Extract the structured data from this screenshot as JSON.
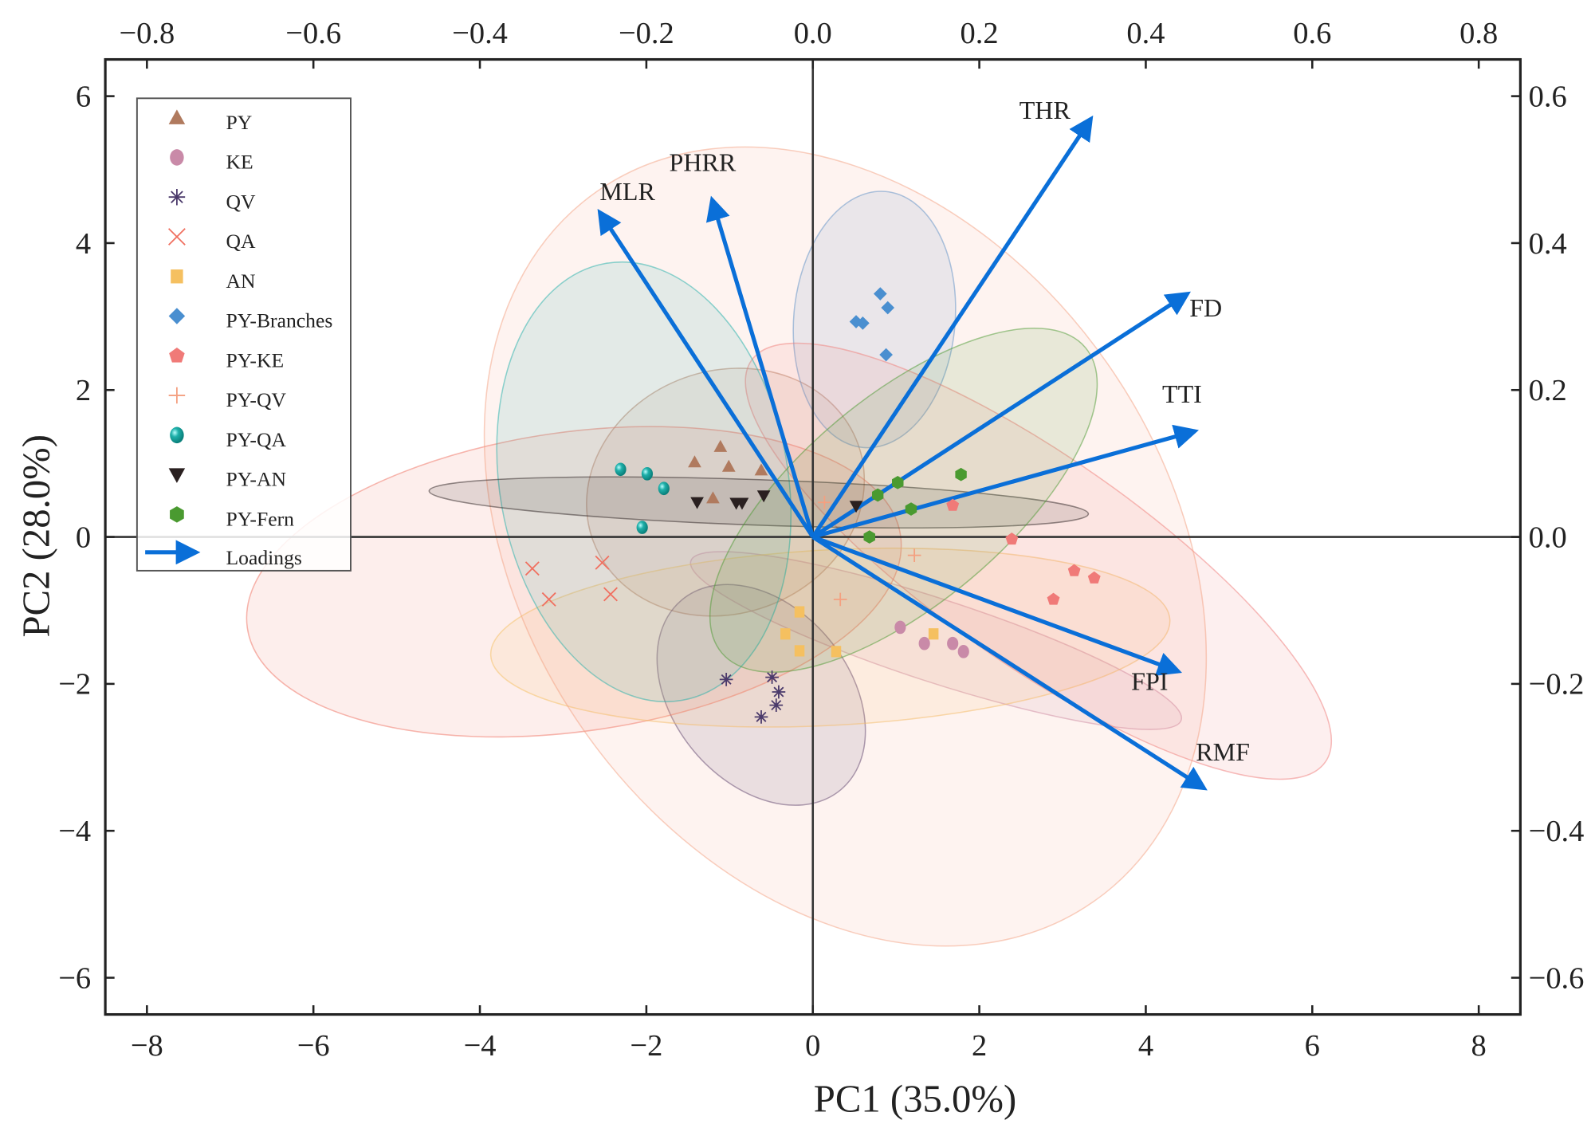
{
  "chart_data": {
    "type": "scatter",
    "subtype": "pca-biplot",
    "xlabel": "PC1 (35.0%)",
    "ylabel": "PC2 (28.0%)",
    "xlim": [
      -8.5,
      8.5
    ],
    "ylim": [
      -6.5,
      6.5
    ],
    "xticks": [
      -8,
      -6,
      -4,
      -2,
      0,
      2,
      4,
      6,
      8
    ],
    "yticks": [
      -6,
      -4,
      -2,
      0,
      2,
      4,
      6
    ],
    "xtick_labels": [
      "−8",
      "−6",
      "−4",
      "−2",
      "0",
      "2",
      "4",
      "6",
      "8"
    ],
    "ytick_labels": [
      "−6",
      "−4",
      "−2",
      "0",
      "2",
      "4",
      "6"
    ],
    "top_ticks": [
      -0.8,
      -0.6,
      -0.4,
      -0.2,
      0.0,
      0.2,
      0.4,
      0.6,
      0.8
    ],
    "top_tick_labels": [
      "−0.8",
      "−0.6",
      "−0.4",
      "−0.2",
      "0.0",
      "0.2",
      "0.4",
      "0.6",
      "0.8"
    ],
    "right_ticks": [
      -0.6,
      -0.4,
      -0.2,
      0.0,
      0.2,
      0.4,
      0.6
    ],
    "right_tick_labels": [
      "−0.6",
      "−0.4",
      "−0.2",
      "0.0",
      "0.2",
      "0.4",
      "0.6"
    ],
    "loading_scale": 10,
    "legend_position": "top-left",
    "legend_loadings_label": "Loadings",
    "loading_color": "#0a6fd8",
    "series": [
      {
        "name": "PY",
        "marker": "triangle-up",
        "color": "#b07a5e",
        "points": [
          [
            -1.42,
            1.02
          ],
          [
            -1.11,
            1.23
          ],
          [
            -1.01,
            0.96
          ],
          [
            -0.62,
            0.91
          ],
          [
            -1.2,
            0.53
          ]
        ],
        "ellipse": {
          "center": [
            -1.05,
            0.61
          ],
          "semi_axes": [
            1.8,
            1.55
          ],
          "angle": -20
        }
      },
      {
        "name": "KE",
        "marker": "circle",
        "color": "#c98aa8",
        "points": [
          [
            1.05,
            -1.23
          ],
          [
            1.34,
            -1.45
          ],
          [
            1.68,
            -1.45
          ],
          [
            1.81,
            -1.56
          ]
        ],
        "ellipse": {
          "center": [
            1.48,
            -1.41
          ],
          "semi_axes": [
            3.29,
            0.53
          ],
          "angle": 18
        }
      },
      {
        "name": "QV",
        "marker": "asterisk",
        "color": "#4b3a6b",
        "points": [
          [
            -1.04,
            -1.94
          ],
          [
            -0.49,
            -1.91
          ],
          [
            -0.41,
            -2.11
          ],
          [
            -0.44,
            -2.29
          ],
          [
            -0.62,
            -2.45
          ]
        ],
        "ellipse": {
          "center": [
            -0.62,
            -2.15
          ],
          "semi_axes": [
            1.58,
            1.12
          ],
          "angle": 50
        }
      },
      {
        "name": "QA",
        "marker": "x",
        "color": "#f07060",
        "points": [
          [
            -3.37,
            -0.43
          ],
          [
            -2.53,
            -0.35
          ],
          [
            -3.17,
            -0.85
          ],
          [
            -2.43,
            -0.78
          ]
        ],
        "ellipse": {
          "center": [
            -2.87,
            -0.61
          ],
          "semi_axes": [
            4.21,
            1.91
          ],
          "angle": -8
        }
      },
      {
        "name": "AN",
        "marker": "square",
        "color": "#f5c060",
        "points": [
          [
            -0.16,
            -1.02
          ],
          [
            -0.33,
            -1.32
          ],
          [
            -0.16,
            -1.55
          ],
          [
            0.28,
            -1.56
          ],
          [
            1.45,
            -1.32
          ]
        ],
        "ellipse": {
          "center": [
            0.21,
            -1.37
          ],
          "semi_axes": [
            4.34,
            1.12
          ],
          "angle": -3
        }
      },
      {
        "name": "PY-Branches",
        "marker": "diamond",
        "color": "#4a8fd0",
        "points": [
          [
            0.81,
            3.31
          ],
          [
            0.9,
            3.12
          ],
          [
            0.52,
            2.93
          ],
          [
            0.6,
            2.91
          ],
          [
            0.88,
            2.48
          ]
        ],
        "ellipse": {
          "center": [
            0.74,
            2.96
          ],
          "semi_axes": [
            1.03,
            1.64
          ],
          "angle": 5
        }
      },
      {
        "name": "PY-KE",
        "marker": "pentagon",
        "color": "#f07a78",
        "points": [
          [
            1.68,
            0.43
          ],
          [
            2.39,
            -0.03
          ],
          [
            3.14,
            -0.46
          ],
          [
            3.38,
            -0.56
          ],
          [
            2.89,
            -0.85
          ]
        ],
        "ellipse": {
          "center": [
            2.71,
            -0.33
          ],
          "semi_axes": [
            4.47,
            1.32
          ],
          "angle": 35
        }
      },
      {
        "name": "PY-QV",
        "marker": "plus",
        "color": "#f4a080",
        "points": [
          [
            0.14,
            0.47
          ],
          [
            1.22,
            -0.25
          ],
          [
            0.33,
            -0.85
          ]
        ],
        "ellipse": {
          "center": [
            0.39,
            -0.13
          ],
          "semi_axes": [
            5.53,
            4.08
          ],
          "angle": 55
        }
      },
      {
        "name": "PY-QA",
        "marker": "sphere",
        "color": "#1fb0aa",
        "points": [
          [
            -2.31,
            0.92
          ],
          [
            -1.99,
            0.86
          ],
          [
            -1.79,
            0.66
          ],
          [
            -2.05,
            0.13
          ]
        ],
        "ellipse": {
          "center": [
            -2.03,
            0.75
          ],
          "semi_axes": [
            1.84,
            2.83
          ],
          "angle": -10
        }
      },
      {
        "name": "PY-AN",
        "marker": "triangle-down",
        "color": "#2a2020",
        "points": [
          [
            -1.39,
            0.47
          ],
          [
            -0.92,
            0.46
          ],
          [
            -0.85,
            0.46
          ],
          [
            -0.59,
            0.56
          ],
          [
            0.52,
            0.42
          ]
        ],
        "ellipse": {
          "center": [
            -0.65,
            0.47
          ],
          "semi_axes": [
            4.21,
            0.29
          ],
          "angle": 2
        }
      },
      {
        "name": "PY-Fern",
        "marker": "hexagon",
        "color": "#4a9a30",
        "points": [
          [
            1.78,
            0.85
          ],
          [
            1.02,
            0.74
          ],
          [
            0.78,
            0.57
          ],
          [
            1.18,
            0.38
          ],
          [
            0.68,
            0.0
          ]
        ],
        "ellipse": {
          "center": [
            1.09,
            0.5
          ],
          "semi_axes": [
            3.03,
            1.32
          ],
          "angle": -40
        }
      }
    ],
    "loadings": [
      {
        "name": "THR",
        "pc1": 0.334,
        "pc2": 0.569
      },
      {
        "name": "PHRR",
        "pc1": -0.121,
        "pc2": 0.459
      },
      {
        "name": "MLR",
        "pc1": -0.256,
        "pc2": 0.442
      },
      {
        "name": "FD",
        "pc1": 0.45,
        "pc2": 0.331
      },
      {
        "name": "TTI",
        "pc1": 0.459,
        "pc2": 0.144
      },
      {
        "name": "FPI",
        "pc1": 0.439,
        "pc2": -0.183
      },
      {
        "name": "RMF",
        "pc1": 0.47,
        "pc2": -0.342
      }
    ]
  }
}
